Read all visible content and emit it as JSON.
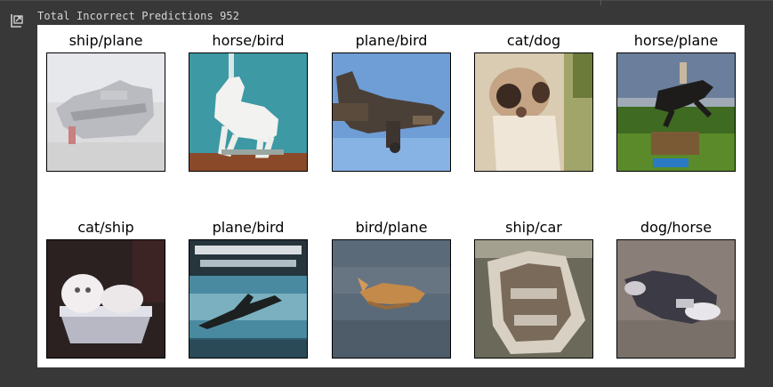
{
  "output": {
    "icon": "output-redirect-icon",
    "text": "Total Incorrect Predictions 952"
  },
  "figure": {
    "rows": [
      [
        {
          "label": "ship/plane",
          "thumb": "ship-image"
        },
        {
          "label": "horse/bird",
          "thumb": "horse-image"
        },
        {
          "label": "plane/bird",
          "thumb": "plane-image"
        },
        {
          "label": "cat/dog",
          "thumb": "cat-image"
        },
        {
          "label": "horse/plane",
          "thumb": "horse-jump-image"
        }
      ],
      [
        {
          "label": "cat/ship",
          "thumb": "cat-in-tub-image"
        },
        {
          "label": "plane/bird",
          "thumb": "plane-poster-image"
        },
        {
          "label": "bird/plane",
          "thumb": "bird-in-water-image"
        },
        {
          "label": "ship/car",
          "thumb": "boat-image"
        },
        {
          "label": "dog/horse",
          "thumb": "dog-lying-image"
        }
      ]
    ]
  }
}
